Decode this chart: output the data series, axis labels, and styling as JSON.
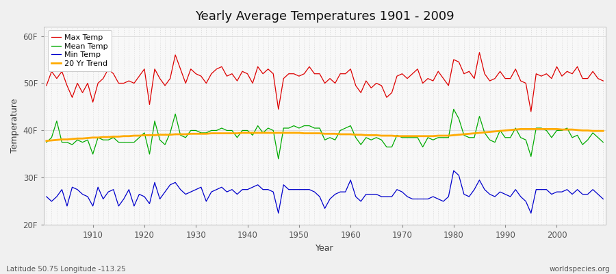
{
  "title": "Yearly Average Temperatures 1901 - 2009",
  "xlabel": "Year",
  "ylabel": "Temperature",
  "start_year": 1901,
  "end_year": 2009,
  "ylim": [
    20,
    62
  ],
  "yticks": [
    20,
    30,
    40,
    50,
    60
  ],
  "ytick_labels": [
    "20F",
    "30F",
    "40F",
    "50F",
    "60F"
  ],
  "bg_color": "#f0f0f0",
  "plot_bg_color": "#f8f8f8",
  "grid_color_h": "#d8d8d8",
  "grid_color_v": "#cccccc",
  "max_color": "#dd0000",
  "mean_color": "#00aa00",
  "min_color": "#0000cc",
  "trend_color": "#ffaa00",
  "legend_labels": [
    "Max Temp",
    "Mean Temp",
    "Min Temp",
    "20 Yr Trend"
  ],
  "footer_left": "Latitude 50.75 Longitude -113.25",
  "footer_right": "worldspecies.org",
  "max_temps": [
    49.5,
    52.5,
    51.0,
    52.5,
    49.5,
    47.0,
    50.0,
    48.0,
    50.0,
    46.0,
    50.0,
    51.0,
    53.0,
    52.0,
    50.0,
    50.0,
    50.5,
    50.0,
    51.5,
    53.0,
    45.5,
    53.0,
    51.0,
    49.5,
    51.0,
    56.0,
    53.0,
    50.0,
    53.0,
    52.0,
    51.5,
    50.0,
    52.0,
    53.0,
    53.5,
    51.5,
    52.0,
    50.5,
    52.5,
    52.0,
    50.0,
    53.5,
    52.0,
    53.0,
    52.0,
    44.5,
    51.0,
    52.0,
    52.0,
    51.5,
    52.0,
    53.5,
    52.0,
    52.0,
    50.0,
    51.0,
    50.0,
    52.0,
    52.0,
    53.0,
    49.5,
    48.0,
    50.5,
    49.0,
    50.0,
    49.5,
    47.0,
    48.0,
    51.5,
    52.0,
    51.0,
    52.0,
    53.0,
    50.0,
    51.0,
    50.5,
    52.5,
    51.0,
    49.5,
    55.0,
    54.5,
    52.0,
    52.5,
    51.0,
    56.5,
    52.0,
    50.5,
    51.0,
    52.5,
    51.0,
    51.0,
    53.0,
    50.5,
    50.0,
    44.0,
    52.0,
    51.5,
    52.0,
    51.0,
    53.5,
    51.5,
    52.5,
    52.0,
    53.5,
    51.0,
    51.0,
    52.5,
    51.0,
    50.5
  ],
  "mean_temps": [
    37.5,
    38.5,
    42.0,
    37.5,
    37.5,
    37.0,
    38.0,
    37.5,
    38.0,
    35.0,
    38.5,
    38.0,
    38.0,
    38.5,
    37.5,
    37.5,
    37.5,
    37.5,
    38.5,
    39.5,
    35.0,
    42.0,
    38.0,
    37.0,
    39.5,
    43.5,
    39.0,
    38.5,
    40.0,
    40.0,
    39.5,
    39.5,
    40.0,
    40.0,
    40.5,
    40.0,
    40.0,
    38.5,
    40.0,
    40.0,
    39.0,
    41.0,
    39.5,
    40.5,
    40.0,
    34.0,
    40.5,
    40.5,
    41.0,
    40.5,
    41.0,
    41.0,
    40.5,
    40.5,
    38.0,
    38.5,
    38.0,
    40.0,
    40.5,
    41.0,
    38.5,
    37.0,
    38.5,
    38.0,
    38.5,
    38.0,
    36.5,
    36.5,
    39.0,
    38.5,
    38.5,
    38.5,
    38.5,
    36.5,
    38.5,
    38.0,
    38.5,
    38.5,
    38.5,
    44.5,
    42.5,
    39.0,
    38.5,
    38.5,
    43.0,
    39.5,
    38.0,
    37.5,
    40.0,
    38.5,
    38.5,
    40.5,
    38.5,
    38.0,
    34.5,
    40.5,
    40.5,
    40.0,
    38.5,
    40.0,
    40.0,
    40.5,
    38.5,
    39.0,
    37.0,
    38.0,
    39.5,
    38.5,
    37.5
  ],
  "min_temps": [
    26.0,
    25.0,
    26.0,
    27.5,
    24.0,
    28.0,
    27.5,
    26.5,
    26.0,
    24.0,
    28.0,
    25.5,
    27.0,
    27.5,
    24.0,
    25.5,
    27.5,
    24.0,
    26.5,
    26.0,
    24.5,
    29.0,
    25.5,
    27.0,
    28.5,
    29.0,
    27.5,
    26.5,
    27.0,
    27.5,
    28.0,
    25.0,
    27.0,
    27.5,
    28.0,
    27.0,
    27.5,
    26.5,
    27.5,
    27.5,
    28.0,
    28.5,
    27.5,
    27.5,
    27.0,
    22.5,
    28.5,
    27.5,
    27.5,
    27.5,
    27.5,
    27.5,
    27.0,
    26.0,
    23.5,
    25.5,
    26.5,
    27.0,
    27.0,
    29.5,
    26.0,
    25.0,
    26.5,
    26.5,
    26.5,
    26.0,
    26.0,
    26.0,
    27.5,
    27.0,
    26.0,
    25.5,
    25.5,
    25.5,
    25.5,
    26.0,
    25.5,
    25.0,
    26.0,
    31.5,
    30.5,
    26.5,
    26.0,
    27.5,
    29.5,
    27.5,
    26.5,
    26.0,
    27.0,
    26.5,
    26.0,
    27.5,
    26.0,
    25.0,
    22.5,
    27.5,
    27.5,
    27.5,
    26.5,
    27.0,
    27.0,
    27.5,
    26.5,
    27.5,
    26.5,
    26.5,
    27.5,
    26.5,
    25.5
  ],
  "trend_temps": [
    37.8,
    37.9,
    38.0,
    38.1,
    38.1,
    38.2,
    38.3,
    38.3,
    38.4,
    38.5,
    38.5,
    38.6,
    38.6,
    38.7,
    38.7,
    38.8,
    38.8,
    38.9,
    38.9,
    39.0,
    39.0,
    39.0,
    39.1,
    39.1,
    39.1,
    39.2,
    39.2,
    39.2,
    39.3,
    39.3,
    39.3,
    39.3,
    39.4,
    39.4,
    39.4,
    39.4,
    39.4,
    39.4,
    39.5,
    39.5,
    39.5,
    39.5,
    39.5,
    39.5,
    39.5,
    39.5,
    39.5,
    39.5,
    39.5,
    39.5,
    39.4,
    39.4,
    39.4,
    39.4,
    39.3,
    39.3,
    39.3,
    39.2,
    39.2,
    39.2,
    39.1,
    39.1,
    39.0,
    39.0,
    39.0,
    38.9,
    38.9,
    38.9,
    38.8,
    38.8,
    38.8,
    38.8,
    38.8,
    38.8,
    38.8,
    38.8,
    38.9,
    38.9,
    38.9,
    39.0,
    39.1,
    39.2,
    39.3,
    39.4,
    39.5,
    39.6,
    39.7,
    39.8,
    39.9,
    40.0,
    40.1,
    40.2,
    40.3,
    40.3,
    40.3,
    40.3,
    40.3,
    40.3,
    40.3,
    40.3,
    40.2,
    40.2,
    40.2,
    40.1,
    40.0,
    40.0,
    39.9,
    39.9,
    39.9
  ]
}
